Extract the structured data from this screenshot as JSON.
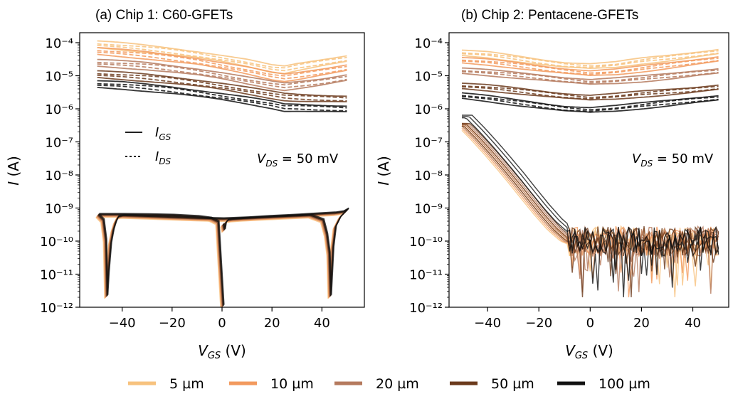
{
  "chart_data": [
    {
      "type": "line",
      "title": "(a) Chip 1: C60-GFETs",
      "xlabel": "V_GS (V)",
      "ylabel": "I (A)",
      "xlim": [
        -57,
        57
      ],
      "ylim": [
        1e-12,
        0.0002
      ],
      "yscale": "log",
      "xticks": [
        -40,
        -20,
        0,
        20,
        40
      ],
      "yticks_exp": [
        -12,
        -11,
        -10,
        -9,
        -8,
        -7,
        -6,
        -5,
        -4
      ],
      "annotation": "V_DS = 50 mV",
      "inset_legend": [
        {
          "label": "I_GS",
          "style": "solid"
        },
        {
          "label": "I_DS",
          "style": "dashed"
        }
      ],
      "series": [
        {
          "name": "5 µm",
          "color": "#f7c27e",
          "I_DS": {
            "x": [
              -50,
              -40,
              -30,
              -20,
              -10,
              0,
              10,
              20,
              25,
              30,
              40,
              50
            ],
            "y": [
              8e-05,
              7e-05,
              6e-05,
              5e-05,
              4e-05,
              3e-05,
              2.2e-05,
              1.5e-05,
              1.4e-05,
              1.7e-05,
              2.3e-05,
              3e-05
            ]
          }
        },
        {
          "name": "10 µm",
          "color": "#f29a5e",
          "I_DS": {
            "x": [
              -50,
              -40,
              -30,
              -20,
              -10,
              0,
              10,
              20,
              25,
              30,
              40,
              50
            ],
            "y": [
              5e-05,
              4.4e-05,
              3.8e-05,
              3.1e-05,
              2.5e-05,
              1.8e-05,
              1.3e-05,
              9e-06,
              8e-06,
              9e-06,
              1.2e-05,
              1.6e-05
            ]
          }
        },
        {
          "name": "20 µm",
          "color": "#b57a5e",
          "I_DS": {
            "x": [
              -50,
              -40,
              -30,
              -20,
              -10,
              0,
              10,
              20,
              25,
              30,
              40,
              50
            ],
            "y": [
              2.2e-05,
              2e-05,
              1.8e-05,
              1.5e-05,
              1.2e-05,
              9e-06,
              6.5e-06,
              4.8e-06,
              4.3e-06,
              4.8e-06,
              6e-06,
              8e-06
            ]
          }
        },
        {
          "name": "50 µm",
          "color": "#6b3a1c",
          "I_DS": {
            "x": [
              -50,
              -40,
              -30,
              -20,
              -10,
              0,
              10,
              20,
              25,
              30,
              40,
              50
            ],
            "y": [
              1e-05,
              9e-06,
              8e-06,
              6.8e-06,
              5.5e-06,
              4.3e-06,
              3.2e-06,
              2.4e-06,
              2.1e-06,
              2e-06,
              1.9e-06,
              1.8e-06
            ]
          }
        },
        {
          "name": "100 µm",
          "color": "#111111",
          "I_DS": {
            "x": [
              -50,
              -40,
              -30,
              -20,
              -10,
              0,
              10,
              20,
              25,
              30,
              40,
              50
            ],
            "y": [
              5e-06,
              4.6e-06,
              4e-06,
              3.4e-06,
              2.7e-06,
              2.1e-06,
              1.6e-06,
              1.2e-06,
              1e-06,
              1e-06,
              9.5e-07,
              9e-07
            ]
          }
        }
      ],
      "I_GS_typical": {
        "forward": {
          "x": [
            0,
            0.5,
            1,
            2,
            4,
            8,
            15,
            25,
            35,
            40,
            41.5,
            42.5,
            43,
            44,
            45,
            47,
            50
          ],
          "y": [
            3e-10,
            2e-10,
            3.3e-10,
            4e-10,
            4.2e-10,
            4.4e-10,
            4.7e-10,
            5.1e-10,
            5.5e-10,
            4e-10,
            1.5e-10,
            4e-11,
            2e-12,
            6e-11,
            2.5e-10,
            5e-10,
            8.5e-10
          ]
        },
        "reverse": {
          "x": [
            50,
            48,
            45,
            40,
            30,
            20,
            10,
            0,
            -10,
            -20,
            -30,
            -40,
            -42,
            -43,
            -44,
            -45,
            -46,
            -46.5,
            -47,
            -48,
            -50
          ],
          "y": [
            8.5e-10,
            7e-10,
            6.5e-10,
            6.2e-10,
            5.6e-10,
            5.1e-10,
            4.6e-10,
            4.3e-10,
            4.5e-10,
            4.8e-10,
            5.1e-10,
            5.4e-10,
            5e-10,
            3.5e-10,
            2e-10,
            8e-11,
            1e-11,
            2e-12,
            1e-10,
            4e-10,
            5.7e-10
          ]
        },
        "return": {
          "x": [
            -50,
            -40,
            -30,
            -20,
            -10,
            -5,
            -2,
            0
          ],
          "y": [
            5.8e-10,
            5.8e-10,
            5.7e-10,
            5.5e-10,
            5e-10,
            4.5e-10,
            3.5e-10,
            1e-12
          ]
        }
      }
    },
    {
      "type": "line",
      "title": "(b) Chip 2: Pentacene-GFETs",
      "xlabel": "V_GS (V)",
      "ylabel": "I (A)",
      "xlim": [
        -55,
        54
      ],
      "ylim": [
        1e-12,
        0.0002
      ],
      "yscale": "log",
      "xticks": [
        -40,
        -20,
        0,
        20,
        40
      ],
      "yticks_exp": [
        -12,
        -11,
        -10,
        -9,
        -8,
        -7,
        -6,
        -5,
        -4
      ],
      "annotation": "V_DS = 50 mV",
      "series": [
        {
          "name": "5 µm",
          "color": "#f7c27e",
          "I_DS": {
            "x": [
              -50,
              -40,
              -30,
              -20,
              -10,
              0,
              10,
              20,
              30,
              40,
              50
            ],
            "y": [
              4.5e-05,
              4e-05,
              3.2e-05,
              2.5e-05,
              2e-05,
              1.8e-05,
              2e-05,
              2.6e-05,
              3.2e-05,
              4e-05,
              5e-05
            ]
          }
        },
        {
          "name": "10 µm",
          "color": "#f29a5e",
          "I_DS": {
            "x": [
              -50,
              -40,
              -30,
              -20,
              -10,
              0,
              10,
              20,
              30,
              40,
              50
            ],
            "y": [
              2.7e-05,
              2.4e-05,
              2e-05,
              1.6e-05,
              1.3e-05,
              1.1e-05,
              1.2e-05,
              1.5e-05,
              1.9e-05,
              2.4e-05,
              3e-05
            ]
          }
        },
        {
          "name": "20 µm",
          "color": "#b57a5e",
          "I_DS": {
            "x": [
              -50,
              -40,
              -30,
              -20,
              -10,
              0,
              10,
              20,
              30,
              40,
              50
            ],
            "y": [
              1.3e-05,
              1.15e-05,
              1e-05,
              8.5e-06,
              7e-06,
              6e-06,
              6.5e-06,
              7.5e-06,
              9e-06,
              1.1e-05,
              1.3e-05
            ]
          }
        },
        {
          "name": "50 µm",
          "color": "#6b3a1c",
          "I_DS": {
            "x": [
              -50,
              -40,
              -30,
              -20,
              -10,
              0,
              10,
              20,
              30,
              40,
              50
            ],
            "y": [
              4.5e-06,
              4e-06,
              3.4e-06,
              2.8e-06,
              2.3e-06,
              2e-06,
              2.2e-06,
              2.6e-06,
              3e-06,
              3.5e-06,
              4.2e-06
            ]
          }
        },
        {
          "name": "100 µm",
          "color": "#111111",
          "I_DS": {
            "x": [
              -50,
              -40,
              -30,
              -20,
              -10,
              0,
              10,
              20,
              30,
              40,
              50
            ],
            "y": [
              2.3e-06,
              1.9e-06,
              1.5e-06,
              1.2e-06,
              9.5e-07,
              8.5e-07,
              9.5e-07,
              1.15e-06,
              1.4e-06,
              1.7e-06,
              2e-06
            ]
          }
        }
      ],
      "I_GS_typical": {
        "x": [
          -50,
          -45,
          -40,
          -35,
          -30,
          -25,
          -20,
          -15,
          -10,
          -7,
          -5,
          0,
          10,
          20,
          30,
          40,
          50
        ],
        "y": [
          3e-07,
          1.2e-07,
          4.5e-08,
          1.6e-08,
          5.5e-09,
          1.8e-09,
          6e-10,
          2.2e-10,
          1e-10,
          8e-11,
          7e-11,
          6e-11,
          6e-11,
          6e-11,
          6e-11,
          6e-11,
          6e-11
        ],
        "noise_floor": 1e-10
      }
    }
  ],
  "legend": {
    "items": [
      {
        "label": "5 µm",
        "color": "#f7c27e"
      },
      {
        "label": "10 µm",
        "color": "#f29a5e"
      },
      {
        "label": "20 µm",
        "color": "#b57a5e"
      },
      {
        "label": "50 µm",
        "color": "#6b3a1c"
      },
      {
        "label": "100 µm",
        "color": "#111111"
      }
    ]
  }
}
